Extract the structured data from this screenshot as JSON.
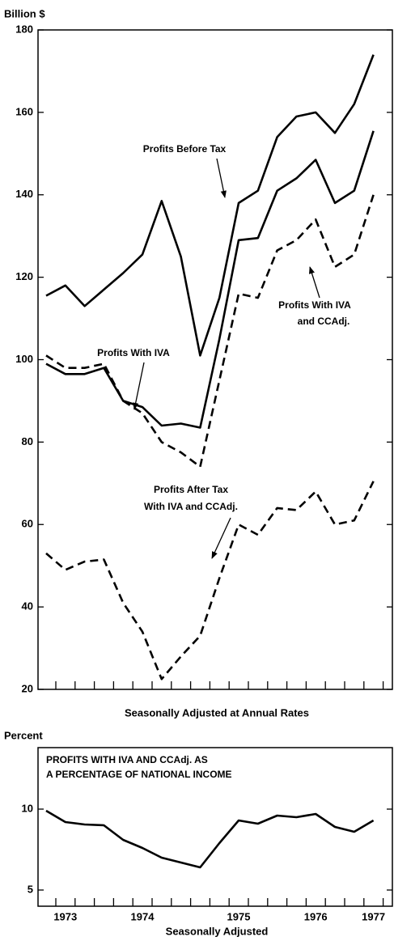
{
  "chart_data": [
    {
      "type": "line",
      "y_label": "Billion $",
      "x_label": "Seasonally Adjusted at Annual Rates",
      "categories": [
        null,
        null,
        null,
        null,
        null,
        null,
        null,
        null,
        null,
        null,
        null,
        null,
        null,
        null,
        null,
        null,
        null,
        null
      ],
      "ylim": [
        20,
        180
      ],
      "yticks": [
        20,
        40,
        60,
        80,
        100,
        120,
        140,
        160,
        180
      ],
      "series": [
        {
          "name": "Profits Before Tax",
          "color": "#000000",
          "dash": false,
          "values": [
            115.5,
            118,
            113,
            117,
            121,
            125.5,
            138.5,
            125,
            101,
            115,
            138,
            141,
            154,
            159,
            160,
            155,
            162,
            174
          ]
        },
        {
          "name": "Profits With IVA",
          "color": "#000000",
          "dash": false,
          "values": [
            99,
            96.5,
            96.5,
            98,
            90,
            88.5,
            84,
            84.5,
            83.5,
            105,
            129,
            129.5,
            141,
            144,
            148.5,
            138,
            141,
            155.5
          ]
        },
        {
          "name": "Profits With IVA and CCAdj.",
          "color": "#000000",
          "dash": true,
          "values": [
            101,
            98,
            98,
            99,
            90,
            87,
            80,
            77.5,
            74,
            95,
            116,
            115,
            126.5,
            129,
            134,
            122.5,
            125.5,
            140
          ]
        },
        {
          "name": "Profits After Tax With IVA and CCAdj.",
          "color": "#000000",
          "dash": true,
          "values": [
            53,
            49,
            51,
            51.5,
            41,
            34,
            22.5,
            28,
            33,
            47,
            60,
            57.5,
            64,
            63.5,
            68,
            60,
            61,
            70.5
          ]
        }
      ],
      "annotations": [
        {
          "lines": [
            "Profits Before Tax"
          ]
        },
        {
          "lines": [
            "Profits With IVA"
          ]
        },
        {
          "lines": [
            "Profits With IVA",
            "and CCAdj."
          ]
        },
        {
          "lines": [
            "Profits After Tax",
            "With IVA and CCAdj."
          ]
        }
      ]
    },
    {
      "type": "line",
      "y_label": "Percent",
      "x_label": "Seasonally Adjusted",
      "categories": [
        null,
        "1973",
        null,
        null,
        null,
        "1974",
        null,
        null,
        null,
        null,
        "1975",
        null,
        null,
        null,
        "1976",
        null,
        null,
        "1977"
      ],
      "ylim": [
        4,
        13.8
      ],
      "yticks": [
        5,
        10
      ],
      "series": [
        {
          "name": "PROFITS WITH IVA AND CCAdj. AS A PERCENTAGE OF NATIONAL INCOME",
          "color": "#000000",
          "dash": false,
          "values": [
            9.9,
            9.2,
            9.05,
            9.0,
            8.1,
            7.6,
            7.0,
            6.7,
            6.4,
            7.9,
            9.3,
            9.1,
            9.6,
            9.5,
            9.7,
            8.9,
            8.6,
            9.3
          ]
        }
      ],
      "annotations": [
        {
          "lines": [
            "PROFITS WITH IVA AND CCAdj. AS",
            "A PERCENTAGE OF NATIONAL INCOME"
          ]
        }
      ]
    }
  ]
}
